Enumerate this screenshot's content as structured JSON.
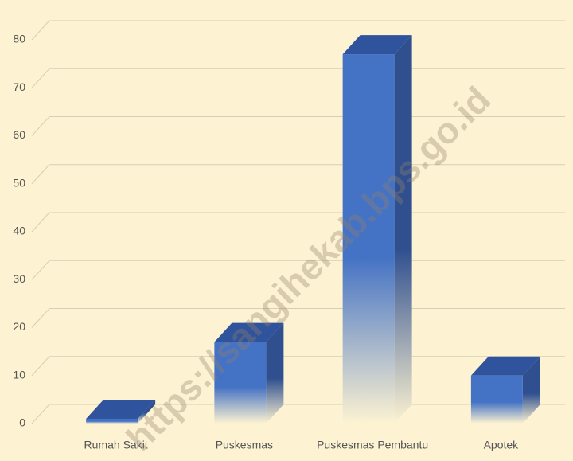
{
  "chart_data": {
    "type": "bar3d",
    "categories": [
      "Rumah Sakit",
      "Puskesmas",
      "Puskesmas Pembantu",
      "Apotek"
    ],
    "values": [
      1,
      17,
      77,
      10
    ],
    "color": "#4472c4",
    "ylim": [
      0,
      80
    ],
    "yticks": [
      0,
      10,
      20,
      30,
      40,
      50,
      60,
      70,
      80
    ],
    "grid": true,
    "watermark": "https://sangihekab.bps.go.id"
  }
}
